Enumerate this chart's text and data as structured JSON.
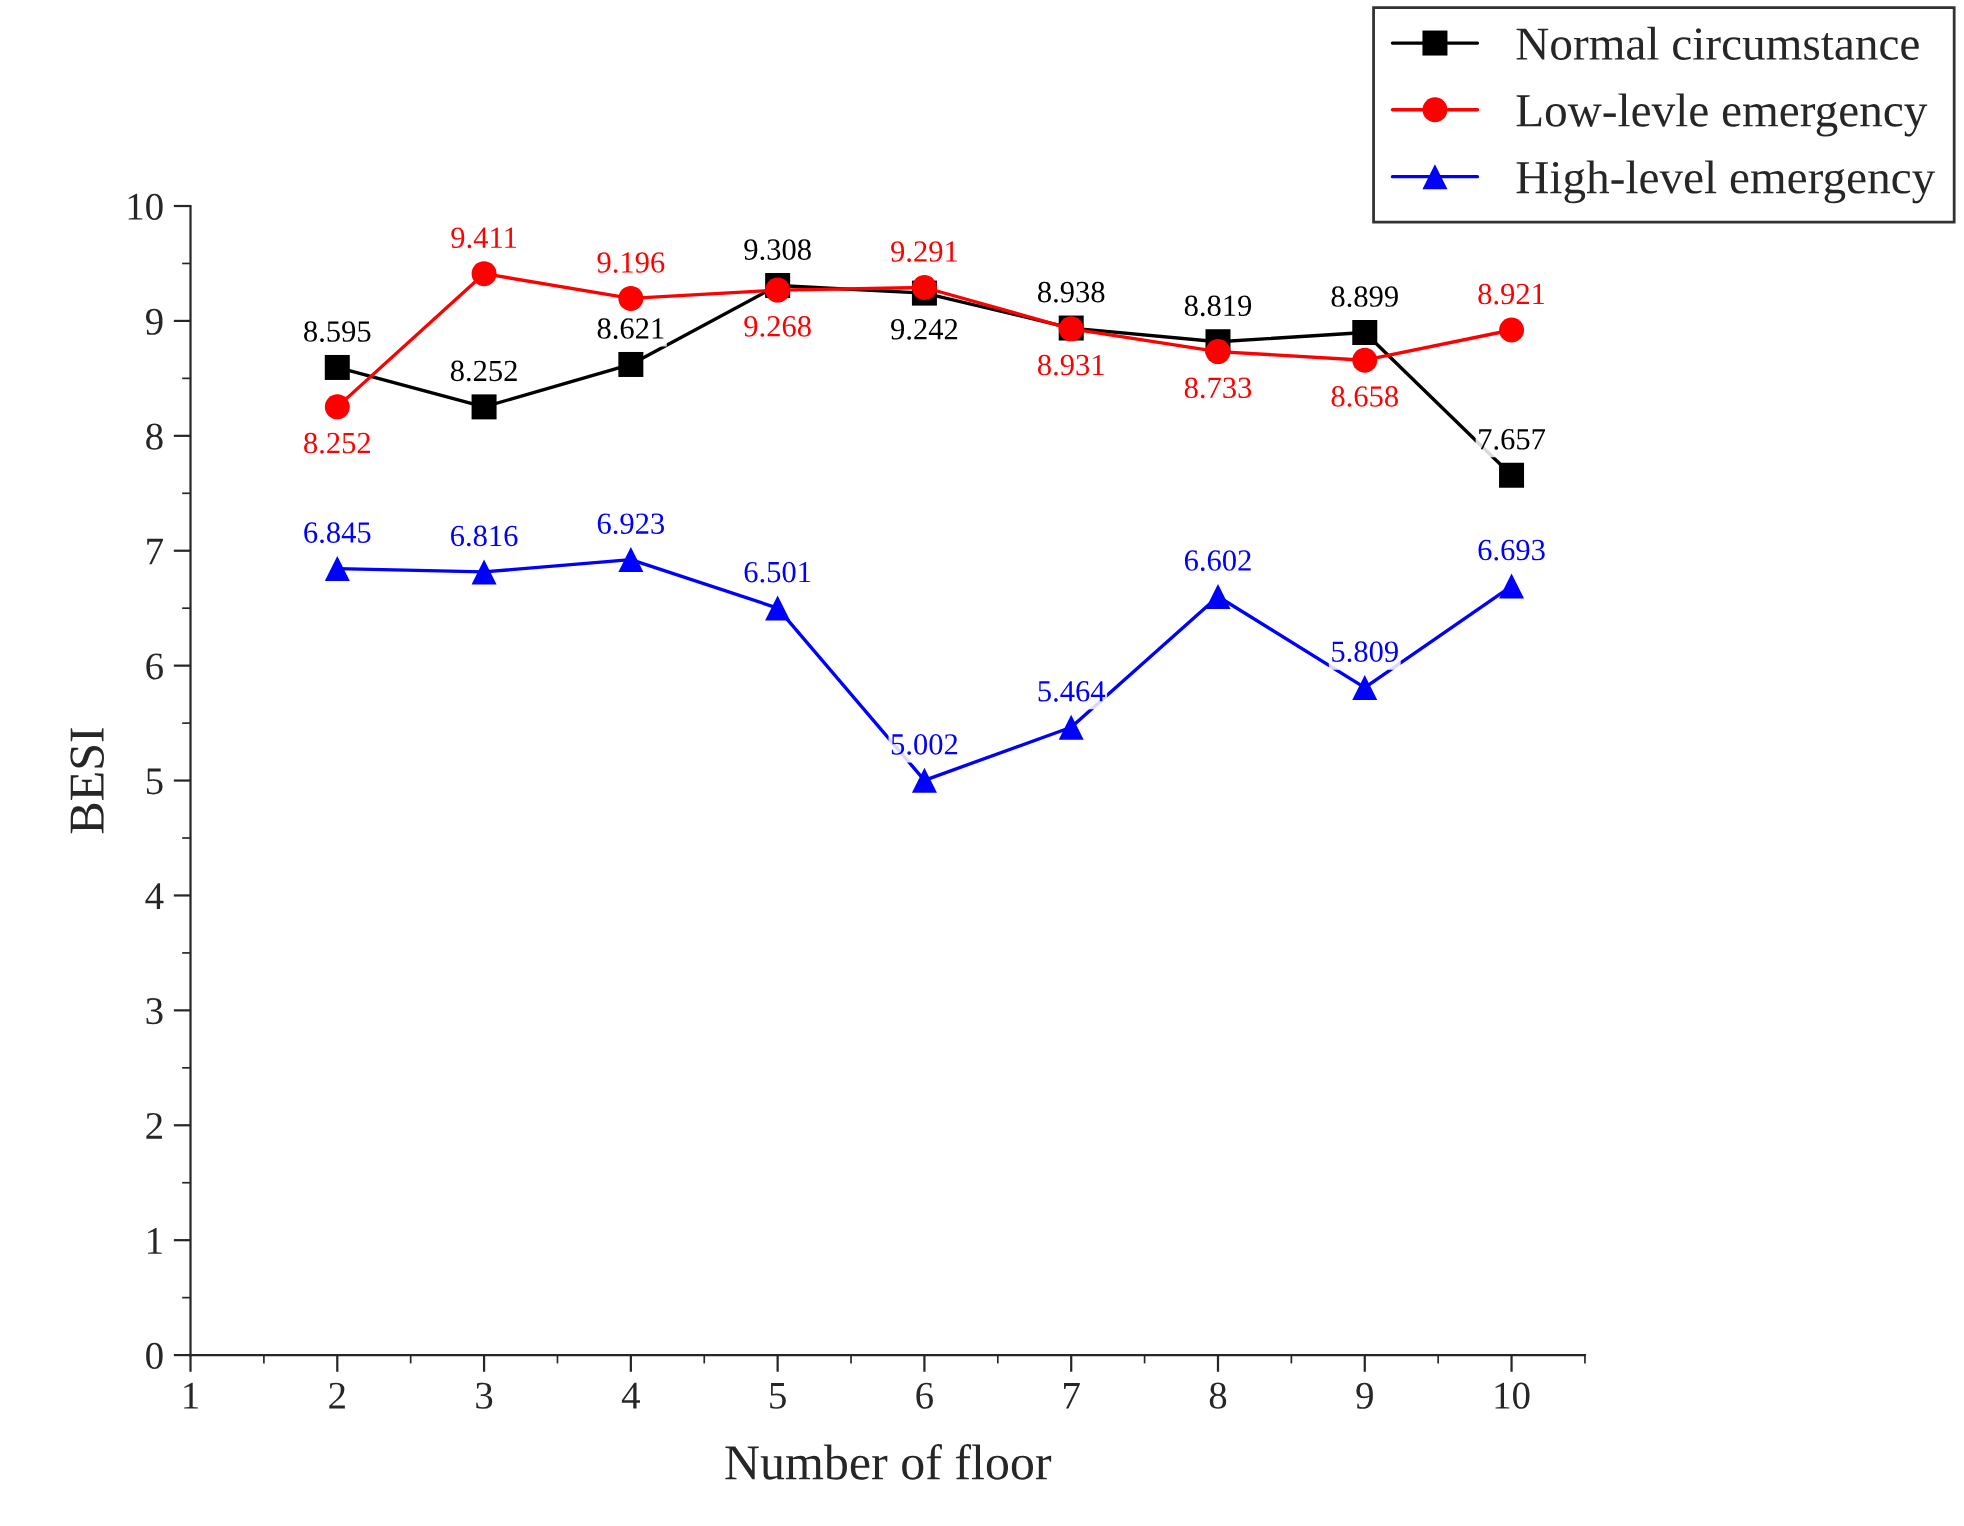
{
  "chart_data": {
    "type": "line",
    "xlabel": "Number of floor",
    "ylabel": "BESI",
    "x": [
      2,
      3,
      4,
      5,
      6,
      7,
      8,
      9,
      10
    ],
    "series": [
      {
        "name": "Normal circumstance",
        "color": "#000000",
        "marker": "square",
        "values": [
          8.595,
          8.252,
          8.621,
          9.308,
          9.242,
          8.938,
          8.819,
          8.899,
          7.657
        ]
      },
      {
        "name": "Low-levle emergency",
        "color": "#ff0000",
        "marker": "circle",
        "values": [
          8.252,
          9.411,
          9.196,
          9.268,
          9.291,
          8.931,
          8.733,
          8.658,
          8.921
        ]
      },
      {
        "name": "High-level emergency",
        "color": "#0000ff",
        "marker": "triangle",
        "values": [
          6.845,
          6.816,
          6.923,
          6.501,
          5.002,
          5.464,
          6.602,
          5.809,
          6.693
        ]
      }
    ],
    "xlim": [
      1,
      10.5
    ],
    "xticks": [
      1,
      2,
      3,
      4,
      5,
      6,
      7,
      8,
      9,
      10
    ],
    "ylim": [
      0,
      10
    ],
    "yticks": [
      0,
      1,
      2,
      3,
      4,
      5,
      6,
      7,
      8,
      9,
      10
    ],
    "data_labels": true,
    "legend": "top right",
    "grid": false,
    "line_style": "solid"
  }
}
